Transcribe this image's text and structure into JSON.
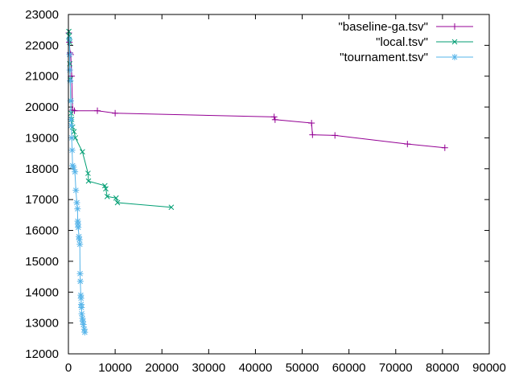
{
  "chart_data": {
    "type": "line",
    "title": "",
    "xlabel": "",
    "ylabel": "",
    "xlim": [
      0,
      90000
    ],
    "ylim": [
      12000,
      23000
    ],
    "x_ticks": [
      0,
      10000,
      20000,
      30000,
      40000,
      50000,
      60000,
      70000,
      80000,
      90000
    ],
    "y_ticks": [
      12000,
      13000,
      14000,
      15000,
      16000,
      17000,
      18000,
      19000,
      20000,
      21000,
      22000,
      23000
    ],
    "grid": false,
    "legend_position": "top-right",
    "series": [
      {
        "name": "\"baseline-ga.tsv\"",
        "color": "#940094",
        "marker": "plus",
        "points": [
          [
            100,
            22400
          ],
          [
            200,
            22100
          ],
          [
            350,
            21750
          ],
          [
            500,
            21700
          ],
          [
            700,
            21000
          ],
          [
            900,
            19900
          ],
          [
            1300,
            19880
          ],
          [
            6200,
            19880
          ],
          [
            10000,
            19800
          ],
          [
            44000,
            19680
          ],
          [
            44200,
            19590
          ],
          [
            52000,
            19480
          ],
          [
            52200,
            19100
          ],
          [
            57000,
            19080
          ],
          [
            72500,
            18800
          ],
          [
            80500,
            18680
          ]
        ]
      },
      {
        "name": "\"local.tsv\"",
        "color": "#009e73",
        "marker": "cross",
        "points": [
          [
            100,
            22450
          ],
          [
            150,
            22300
          ],
          [
            250,
            22100
          ],
          [
            300,
            21400
          ],
          [
            400,
            20900
          ],
          [
            500,
            20200
          ],
          [
            600,
            19800
          ],
          [
            700,
            19600
          ],
          [
            900,
            19350
          ],
          [
            1200,
            19200
          ],
          [
            1500,
            19000
          ],
          [
            3000,
            18550
          ],
          [
            4200,
            17850
          ],
          [
            4300,
            17600
          ],
          [
            7800,
            17450
          ],
          [
            8000,
            17350
          ],
          [
            8300,
            17100
          ],
          [
            10200,
            17050
          ],
          [
            10500,
            16900
          ],
          [
            22000,
            16750
          ]
        ]
      },
      {
        "name": "\"tournament.tsv\"",
        "color": "#56b4e9",
        "marker": "star",
        "points": [
          [
            200,
            22200
          ],
          [
            250,
            21700
          ],
          [
            300,
            21200
          ],
          [
            400,
            20850
          ],
          [
            500,
            20200
          ],
          [
            550,
            19600
          ],
          [
            600,
            19400
          ],
          [
            700,
            19000
          ],
          [
            800,
            18600
          ],
          [
            900,
            18100
          ],
          [
            1100,
            18050
          ],
          [
            1400,
            17900
          ],
          [
            1600,
            17300
          ],
          [
            1800,
            16900
          ],
          [
            1950,
            16700
          ],
          [
            2000,
            16300
          ],
          [
            2050,
            16200
          ],
          [
            2100,
            16100
          ],
          [
            2250,
            15800
          ],
          [
            2350,
            15700
          ],
          [
            2450,
            15550
          ],
          [
            2500,
            14600
          ],
          [
            2550,
            14350
          ],
          [
            2650,
            13900
          ],
          [
            2700,
            13800
          ],
          [
            2750,
            13600
          ],
          [
            2800,
            13500
          ],
          [
            2850,
            13300
          ],
          [
            3000,
            13150
          ],
          [
            3100,
            13050
          ],
          [
            3200,
            12950
          ],
          [
            3400,
            12800
          ],
          [
            3500,
            12700
          ]
        ]
      }
    ]
  }
}
